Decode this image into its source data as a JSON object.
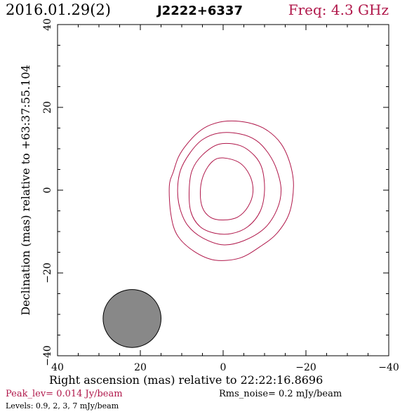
{
  "header": {
    "date": "2016.01.29(2)",
    "source": "J2222+6337",
    "freq": "Freq: 4.3 GHz"
  },
  "footer": {
    "peak": "Peak_lev=  0.014 Jy/beam",
    "rms": "Rms_noise=   0.2 mJy/beam",
    "levels": "Levels: 0.9,    2,    3,    7 mJy/beam"
  },
  "colors": {
    "accent": "#b0174a",
    "beam_fill": "#888888",
    "axis": "#000000"
  },
  "chart_data": {
    "type": "contour",
    "xlabel": "Right ascension (mas) relative to 22:22:16.8696",
    "ylabel": "Declination (mas) relative to +63:37:55.104",
    "xlim": [
      40,
      -40
    ],
    "ylim": [
      -40,
      40
    ],
    "xticks": [
      40,
      20,
      0,
      -20,
      -40
    ],
    "yticks": [
      -40,
      -20,
      0,
      20,
      40
    ],
    "xtick_labels": [
      "40",
      "20",
      "0",
      "−20",
      "−40"
    ],
    "ytick_labels": [
      "−40",
      "−20",
      "0",
      "20",
      "40"
    ],
    "levels_mJy": [
      0.9,
      2,
      3,
      7
    ],
    "contours": [
      {
        "level": 0.9,
        "points": [
          [
            -1.0,
            16.7
          ],
          [
            -6.0,
            16.3
          ],
          [
            -10.4,
            14.6
          ],
          [
            -14.0,
            11.2
          ],
          [
            -16.2,
            6.3
          ],
          [
            -17.0,
            1.0
          ],
          [
            -16.0,
            -5.5
          ],
          [
            -13.0,
            -10.4
          ],
          [
            -9.0,
            -13.6
          ],
          [
            -4.0,
            -16.4
          ],
          [
            2.0,
            -16.9
          ],
          [
            7.0,
            -14.8
          ],
          [
            11.0,
            -11.0
          ],
          [
            12.6,
            -6.0
          ],
          [
            13.0,
            1.0
          ],
          [
            12.0,
            4.5
          ],
          [
            10.8,
            8.0
          ],
          [
            9.0,
            10.8
          ],
          [
            6.0,
            14.0
          ],
          [
            3.0,
            15.8
          ]
        ]
      },
      {
        "level": 2,
        "points": [
          [
            1.0,
            13.8
          ],
          [
            -4.0,
            13.6
          ],
          [
            -8.0,
            12.0
          ],
          [
            -11.0,
            8.8
          ],
          [
            -13.0,
            4.8
          ],
          [
            -14.0,
            0.0
          ],
          [
            -13.0,
            -4.7
          ],
          [
            -10.0,
            -9.2
          ],
          [
            -5.0,
            -12.2
          ],
          [
            0.0,
            -13.2
          ],
          [
            5.0,
            -11.5
          ],
          [
            8.5,
            -8.6
          ],
          [
            10.4,
            -4.5
          ],
          [
            11.0,
            0.0
          ],
          [
            10.3,
            4.8
          ],
          [
            8.0,
            9.0
          ],
          [
            5.0,
            12.2
          ]
        ]
      },
      {
        "level": 3,
        "points": [
          [
            1.0,
            11.1
          ],
          [
            -4.0,
            10.8
          ],
          [
            -7.5,
            8.4
          ],
          [
            -9.4,
            5.2
          ],
          [
            -10.0,
            0.0
          ],
          [
            -9.0,
            -5.0
          ],
          [
            -6.0,
            -8.8
          ],
          [
            -2.0,
            -10.5
          ],
          [
            2.0,
            -10.4
          ],
          [
            5.6,
            -8.8
          ],
          [
            7.8,
            -5.2
          ],
          [
            8.2,
            0.0
          ],
          [
            7.5,
            4.8
          ],
          [
            5.0,
            8.5
          ]
        ]
      },
      {
        "level": 7,
        "points": [
          [
            0.0,
            7.8
          ],
          [
            -4.0,
            6.6
          ],
          [
            -6.5,
            3.4
          ],
          [
            -7.2,
            -0.5
          ],
          [
            -6.0,
            -4.0
          ],
          [
            -3.5,
            -6.5
          ],
          [
            0.0,
            -7.2
          ],
          [
            3.0,
            -6.6
          ],
          [
            5.0,
            -4.2
          ],
          [
            5.5,
            0.0
          ],
          [
            4.6,
            4.0
          ],
          [
            2.5,
            7.0
          ]
        ]
      }
    ],
    "beam": {
      "ra": 22,
      "dec": -31,
      "major": 14,
      "minor": 14,
      "pa": 0
    }
  }
}
